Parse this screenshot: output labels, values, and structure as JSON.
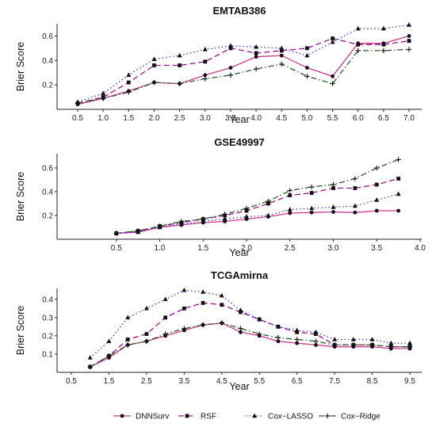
{
  "legend": [
    {
      "name": "DNNSurv",
      "color": "#cc3a8e",
      "dash": "solid",
      "marker": "circle"
    },
    {
      "name": "RSF",
      "color": "#9a1090",
      "dash": "longdash",
      "marker": "square"
    },
    {
      "name": "Cox−LASSO",
      "color": "#3b3bd6",
      "dash": "dotted",
      "marker": "triangle"
    },
    {
      "name": "Cox−Ridge",
      "color": "#2e5b2e",
      "dash": "dotdash",
      "marker": "cross"
    }
  ],
  "chart_data": [
    {
      "type": "line",
      "title": "EMTAB386",
      "xlabel": "Year",
      "ylabel": "Brier Score",
      "xlim": [
        0.5,
        7.0
      ],
      "ylim": [
        0.0,
        0.7
      ],
      "xticks": [
        "0.5",
        "1.0",
        "1.5",
        "2.0",
        "2.5",
        "3.0",
        "3.5",
        "4.0",
        "4.5",
        "5.0",
        "5.5",
        "6.0",
        "6.5",
        "7.0"
      ],
      "yticks": [
        0.2,
        0.4,
        0.6
      ],
      "x": [
        0.5,
        1.0,
        1.5,
        2.0,
        2.5,
        3.0,
        3.5,
        4.0,
        4.5,
        5.0,
        5.5,
        6.0,
        6.5,
        7.0
      ],
      "series": [
        {
          "name": "DNNSurv",
          "values": [
            0.04,
            0.09,
            0.15,
            0.22,
            0.21,
            0.28,
            0.34,
            0.43,
            0.44,
            0.34,
            0.27,
            0.54,
            0.54,
            0.6
          ]
        },
        {
          "name": "RSF",
          "values": [
            0.05,
            0.1,
            0.22,
            0.36,
            0.36,
            0.39,
            0.5,
            0.46,
            0.48,
            0.5,
            0.58,
            0.53,
            0.53,
            0.56
          ]
        },
        {
          "name": "Cox−LASSO",
          "values": [
            0.06,
            0.13,
            0.28,
            0.41,
            0.44,
            0.49,
            0.52,
            0.51,
            0.5,
            0.44,
            0.55,
            0.66,
            0.66,
            0.69
          ]
        },
        {
          "name": "Cox−Ridge",
          "values": [
            0.05,
            0.09,
            0.14,
            0.22,
            0.21,
            0.25,
            0.28,
            0.33,
            0.37,
            0.27,
            0.21,
            0.48,
            0.48,
            0.49
          ]
        }
      ]
    },
    {
      "type": "line",
      "title": "GSE49997",
      "xlabel": "Year",
      "ylabel": "Brier Score",
      "xlim": [
        0.0,
        4.0
      ],
      "ylim": [
        0.0,
        0.72
      ],
      "xticks": [
        "0.5",
        "1.0",
        "1.5",
        "2.0",
        "2.5",
        "3.0",
        "3.5",
        "4.0"
      ],
      "yticks": [
        0.2,
        0.4,
        0.6
      ],
      "x": [
        0.5,
        0.75,
        1.0,
        1.25,
        1.5,
        1.75,
        2.0,
        2.25,
        2.5,
        2.75,
        3.0,
        3.25,
        3.5,
        3.75
      ],
      "series": [
        {
          "name": "DNNSurv",
          "values": [
            0.05,
            0.06,
            0.1,
            0.12,
            0.14,
            0.15,
            0.17,
            0.19,
            0.22,
            0.225,
            0.23,
            0.225,
            0.24,
            0.24
          ]
        },
        {
          "name": "RSF",
          "values": [
            0.05,
            0.07,
            0.11,
            0.14,
            0.17,
            0.2,
            0.24,
            0.3,
            0.37,
            0.39,
            0.43,
            0.43,
            0.46,
            0.51
          ]
        },
        {
          "name": "Cox−LASSO",
          "values": [
            0.05,
            0.06,
            0.1,
            0.13,
            0.15,
            0.17,
            0.19,
            0.2,
            0.25,
            0.26,
            0.27,
            0.28,
            0.33,
            0.38
          ]
        },
        {
          "name": "Cox−Ridge",
          "values": [
            0.05,
            0.07,
            0.11,
            0.15,
            0.17,
            0.21,
            0.26,
            0.32,
            0.41,
            0.44,
            0.46,
            0.51,
            0.6,
            0.67
          ]
        }
      ]
    },
    {
      "type": "line",
      "title": "TCGAmirna",
      "xlabel": "Year",
      "ylabel": "Brier Score",
      "xlim": [
        0.5,
        9.5
      ],
      "ylim": [
        0.0,
        0.46
      ],
      "xticks": [
        "0.5",
        "1.5",
        "2.5",
        "3.5",
        "4.5",
        "5.5",
        "6.5",
        "7.5",
        "8.5",
        "9.5"
      ],
      "yticks": [
        0.1,
        0.2,
        0.3,
        0.4
      ],
      "x": [
        1.0,
        1.5,
        2.0,
        2.5,
        3.0,
        3.5,
        4.0,
        4.5,
        5.0,
        5.5,
        6.0,
        6.5,
        7.0,
        7.5,
        8.0,
        8.5,
        9.0,
        9.5
      ],
      "series": [
        {
          "name": "DNNSurv",
          "values": [
            0.03,
            0.08,
            0.15,
            0.17,
            0.2,
            0.23,
            0.26,
            0.27,
            0.22,
            0.2,
            0.17,
            0.16,
            0.15,
            0.14,
            0.14,
            0.14,
            0.13,
            0.13
          ]
        },
        {
          "name": "RSF",
          "values": [
            0.03,
            0.09,
            0.18,
            0.21,
            0.3,
            0.35,
            0.38,
            0.37,
            0.33,
            0.29,
            0.25,
            0.22,
            0.21,
            0.15,
            0.15,
            0.15,
            0.14,
            0.14
          ]
        },
        {
          "name": "Cox−LASSO",
          "values": [
            0.08,
            0.17,
            0.3,
            0.35,
            0.4,
            0.45,
            0.44,
            0.42,
            0.34,
            0.29,
            0.25,
            0.23,
            0.22,
            0.18,
            0.18,
            0.18,
            0.16,
            0.16
          ]
        },
        {
          "name": "Cox−Ridge",
          "values": [
            0.03,
            0.09,
            0.15,
            0.17,
            0.21,
            0.24,
            0.26,
            0.27,
            0.24,
            0.21,
            0.19,
            0.18,
            0.17,
            0.15,
            0.15,
            0.15,
            0.14,
            0.14
          ]
        }
      ]
    }
  ]
}
